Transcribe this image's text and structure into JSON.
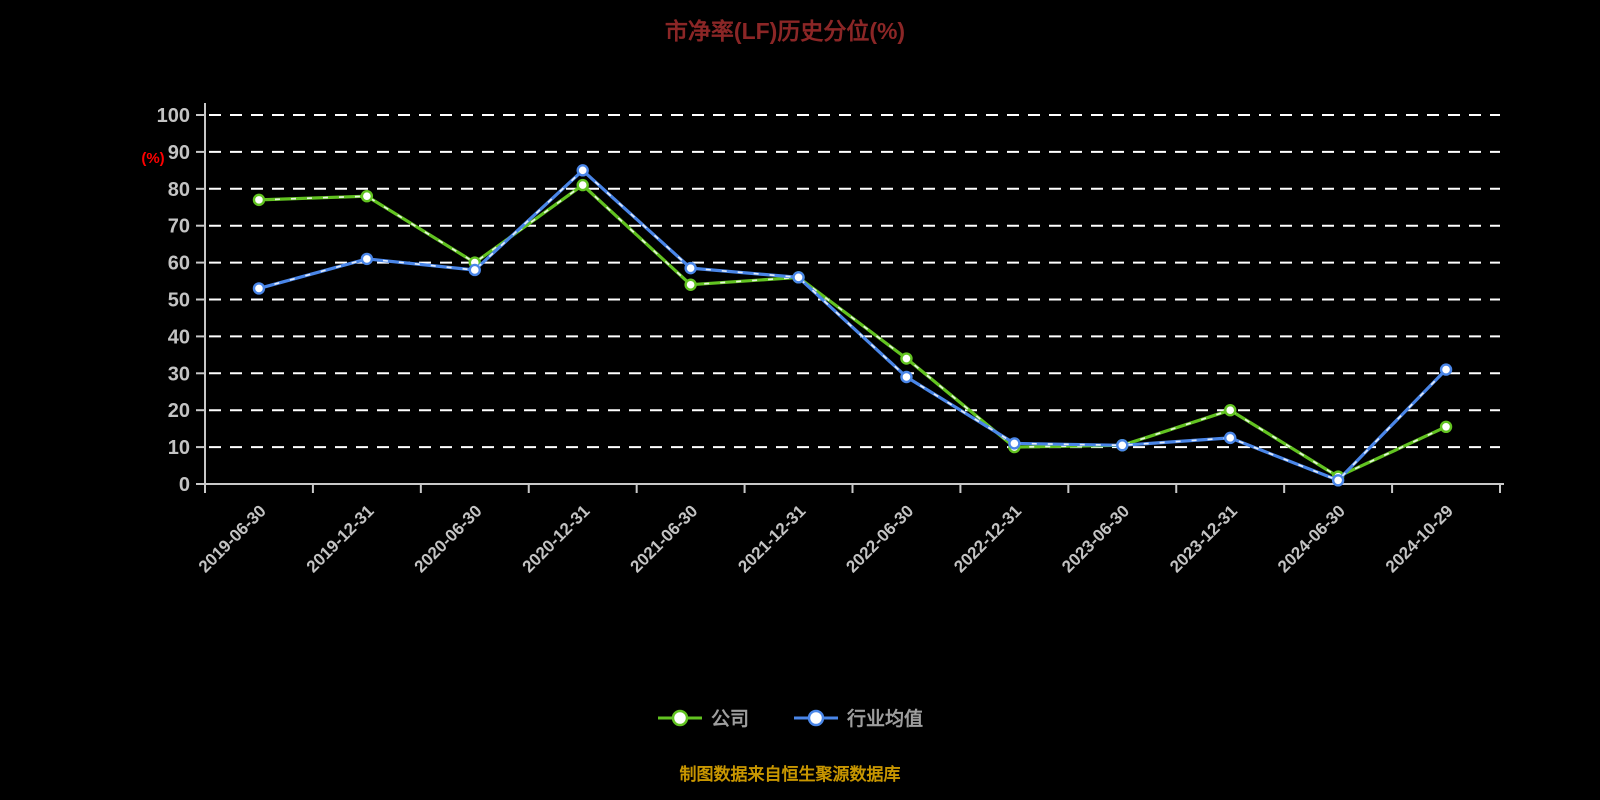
{
  "title": "市净率(LF)历史分位(%)",
  "y_axis_label": "(%)",
  "footer": "制图数据来自恒生聚源数据库",
  "colors": {
    "title": "#8b2626",
    "footer": "#c89600",
    "y_axis_label": "#ff0000",
    "company_series": "#62c321",
    "industry_series": "#4a86e8",
    "grid": "#ffffff",
    "axis_text": "#c3c3c3"
  },
  "chart_data": {
    "type": "line",
    "title": "市净率(LF)历史分位(%)",
    "ylabel": "(%)",
    "ylim": [
      0,
      100
    ],
    "ytick_step": 10,
    "grid": true,
    "legend_position": "bottom",
    "categories": [
      "2019-06-30",
      "2019-12-31",
      "2020-06-30",
      "2020-12-31",
      "2021-06-30",
      "2021-12-31",
      "2022-06-30",
      "2022-12-31",
      "2023-06-30",
      "2023-12-31",
      "2024-06-30",
      "2024-10-29"
    ],
    "series": [
      {
        "name": "公司",
        "color": "#62c321",
        "values": [
          77,
          78,
          60,
          81,
          54,
          56,
          34,
          10,
          10.5,
          20,
          2,
          15.5
        ]
      },
      {
        "name": "行业均值",
        "color": "#4a86e8",
        "values": [
          53,
          61,
          58,
          85,
          58.5,
          56,
          29,
          11,
          10.5,
          12.5,
          1,
          31
        ]
      }
    ]
  }
}
